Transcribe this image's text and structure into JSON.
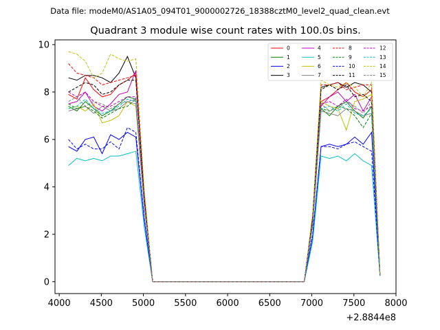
{
  "header": {
    "file_line": "Data file: modeM0/AS1A05_094T01_9000002726_18388cztM0_level2_quad_clean.evt"
  },
  "chart_data": {
    "type": "line",
    "title": "Quadrant 3 module wise count rates with 100.0s bins.",
    "xlabel": "",
    "ylabel": "",
    "x_offset_label": "+2.8844e8",
    "xlim": [
      3950,
      8000
    ],
    "ylim": [
      -0.5,
      10.2
    ],
    "x_ticks": [
      4000,
      4500,
      5000,
      5500,
      6000,
      6500,
      7000,
      7500,
      8000
    ],
    "y_ticks": [
      0,
      2,
      4,
      6,
      8,
      10
    ],
    "grid": false,
    "legend": {
      "position": "top-right",
      "columns": 4
    },
    "x": [
      4110,
      4210,
      4310,
      4410,
      4510,
      4610,
      4710,
      4810,
      4910,
      5010,
      5110,
      6910,
      7010,
      7110,
      7210,
      7310,
      7410,
      7510,
      7610,
      7710,
      7810
    ],
    "series": [
      {
        "name": "0",
        "color": "#ff0000",
        "dash": false,
        "values": [
          7.9,
          7.7,
          8.6,
          8.1,
          7.8,
          7.9,
          8.3,
          8.5,
          8.8,
          3.5,
          0,
          0,
          2.6,
          7.6,
          7.8,
          8.1,
          8.4,
          8.0,
          7.8,
          8.1,
          0.3
        ]
      },
      {
        "name": "1",
        "color": "#008000",
        "dash": false,
        "values": [
          7.4,
          7.2,
          7.6,
          7.3,
          7.0,
          7.2,
          7.5,
          7.8,
          7.7,
          3.3,
          0,
          0,
          2.4,
          7.3,
          7.0,
          7.4,
          7.6,
          7.2,
          6.9,
          7.4,
          0.3
        ]
      },
      {
        "name": "2",
        "color": "#0000ff",
        "dash": false,
        "values": [
          5.7,
          5.5,
          6.0,
          6.1,
          5.4,
          6.2,
          6.0,
          6.3,
          6.1,
          2.6,
          0,
          0,
          1.9,
          5.7,
          5.8,
          5.7,
          5.8,
          6.1,
          5.8,
          6.3,
          0.25
        ]
      },
      {
        "name": "3",
        "color": "#000000",
        "dash": false,
        "values": [
          8.6,
          8.5,
          8.7,
          8.7,
          8.6,
          8.4,
          8.8,
          9.5,
          8.6,
          3.6,
          0,
          0,
          2.7,
          8.2,
          8.3,
          8.4,
          8.2,
          8.4,
          8.3,
          8.0,
          0.3
        ]
      },
      {
        "name": "4",
        "color": "#c000c0",
        "dash": false,
        "values": [
          7.5,
          7.6,
          8.0,
          7.4,
          7.2,
          7.5,
          7.9,
          8.0,
          8.9,
          3.4,
          0,
          0,
          2.5,
          7.4,
          7.8,
          8.0,
          7.6,
          7.9,
          7.2,
          7.8,
          0.3
        ]
      },
      {
        "name": "5",
        "color": "#00c0c0",
        "dash": false,
        "values": [
          4.9,
          5.2,
          5.1,
          5.2,
          5.1,
          5.3,
          5.3,
          5.4,
          5.5,
          2.3,
          0,
          0,
          1.7,
          5.3,
          5.2,
          5.3,
          5.1,
          5.4,
          5.1,
          4.9,
          0.25
        ]
      },
      {
        "name": "6",
        "color": "#c0c000",
        "dash": false,
        "values": [
          7.3,
          7.4,
          7.2,
          7.5,
          6.7,
          6.8,
          7.0,
          7.6,
          7.4,
          3.2,
          0,
          0,
          2.4,
          7.6,
          7.4,
          7.3,
          6.4,
          7.6,
          7.7,
          7.9,
          0.3
        ]
      },
      {
        "name": "7",
        "color": "#808080",
        "dash": false,
        "values": [
          7.2,
          7.3,
          7.4,
          7.1,
          7.4,
          7.2,
          7.3,
          7.6,
          7.5,
          3.2,
          0,
          0,
          2.4,
          7.2,
          7.1,
          7.0,
          7.3,
          7.2,
          7.0,
          7.1,
          0.3
        ]
      },
      {
        "name": "8",
        "color": "#ff0000",
        "dash": true,
        "values": [
          9.2,
          8.8,
          8.7,
          8.6,
          8.3,
          8.4,
          8.5,
          8.6,
          8.7,
          3.7,
          0,
          0,
          2.8,
          8.3,
          8.3,
          8.4,
          8.1,
          8.2,
          8.3,
          8.3,
          0.3
        ]
      },
      {
        "name": "9",
        "color": "#008000",
        "dash": true,
        "values": [
          7.5,
          7.3,
          7.4,
          7.2,
          6.9,
          7.1,
          7.3,
          7.4,
          7.7,
          3.3,
          0,
          0,
          2.4,
          7.3,
          7.2,
          7.4,
          7.3,
          7.0,
          6.5,
          7.1,
          0.3
        ]
      },
      {
        "name": "10",
        "color": "#0000ff",
        "dash": true,
        "values": [
          6.0,
          5.6,
          5.8,
          5.6,
          5.6,
          5.9,
          5.6,
          6.5,
          6.3,
          2.7,
          0,
          0,
          2.0,
          5.7,
          5.7,
          5.6,
          5.8,
          5.9,
          5.7,
          5.5,
          0.25
        ]
      },
      {
        "name": "11",
        "color": "#000000",
        "dash": true,
        "values": [
          8.0,
          8.2,
          8.4,
          8.3,
          7.9,
          8.0,
          8.3,
          8.5,
          8.5,
          3.6,
          0,
          0,
          2.7,
          8.1,
          8.3,
          8.1,
          8.3,
          7.8,
          7.9,
          7.6,
          0.3
        ]
      },
      {
        "name": "12",
        "color": "#c000c0",
        "dash": true,
        "values": [
          8.0,
          7.8,
          8.0,
          7.6,
          7.4,
          7.4,
          7.6,
          7.8,
          7.8,
          3.3,
          0,
          0,
          2.5,
          7.5,
          7.6,
          7.4,
          7.7,
          7.3,
          7.2,
          7.4,
          0.3
        ]
      },
      {
        "name": "13",
        "color": "#00c0c0",
        "dash": true,
        "values": [
          7.3,
          7.4,
          7.7,
          7.3,
          7.1,
          7.2,
          7.4,
          7.7,
          7.6,
          3.3,
          0,
          0,
          2.4,
          7.3,
          7.4,
          7.2,
          7.5,
          7.1,
          7.0,
          7.3,
          0.3
        ]
      },
      {
        "name": "14",
        "color": "#c0c000",
        "dash": true,
        "values": [
          9.7,
          9.6,
          9.3,
          8.6,
          8.8,
          9.6,
          9.4,
          9.3,
          9.4,
          3.9,
          0,
          0,
          2.9,
          8.5,
          8.3,
          8.2,
          8.4,
          8.2,
          7.8,
          8.4,
          0.3
        ]
      },
      {
        "name": "15",
        "color": "#808080",
        "dash": true,
        "values": [
          7.6,
          7.8,
          7.4,
          7.6,
          7.5,
          7.3,
          7.5,
          7.6,
          7.7,
          3.3,
          0,
          0,
          2.5,
          7.5,
          7.2,
          7.3,
          7.6,
          7.4,
          7.1,
          7.6,
          0.3
        ]
      }
    ]
  }
}
